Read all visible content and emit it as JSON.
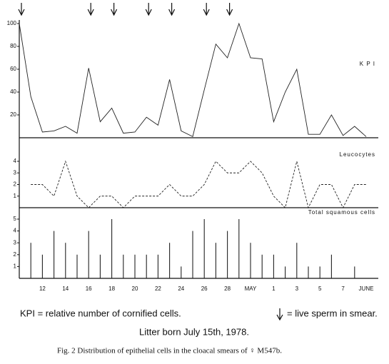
{
  "chart_data": [
    {
      "type": "line",
      "label": "K P I",
      "dashed": false,
      "values": [
        100,
        36,
        5,
        6,
        10,
        4,
        61,
        14,
        26,
        4,
        5,
        18,
        11,
        51,
        6,
        1,
        42,
        82,
        70,
        100,
        70,
        69,
        14,
        40,
        60,
        3,
        3,
        20,
        2,
        10,
        1
      ],
      "ylim": [
        0,
        100
      ],
      "yticks": [
        20,
        40,
        60,
        80,
        100
      ]
    },
    {
      "type": "line",
      "label": "Leucocytes",
      "dashed": true,
      "values": [
        null,
        2,
        2,
        1,
        4,
        1,
        0,
        1,
        1,
        0,
        1,
        1,
        1,
        2,
        1,
        1,
        2,
        4,
        3,
        3,
        4,
        3,
        1,
        0,
        4,
        0,
        2,
        2,
        0,
        2,
        2
      ],
      "ylim": [
        0,
        4
      ],
      "yticks": [
        1,
        2,
        3,
        4
      ]
    },
    {
      "type": "bar",
      "label": "Total squamous cells",
      "categories": [
        null,
        null,
        "12",
        null,
        "14",
        null,
        "16",
        null,
        "18",
        null,
        "20",
        null,
        "22",
        null,
        "24",
        null,
        "26",
        null,
        "28",
        null,
        "MAY",
        null,
        "1",
        null,
        "3",
        null,
        "5",
        null,
        "7",
        null,
        "JUNE"
      ],
      "values": [
        null,
        3,
        2,
        4,
        3,
        2,
        4,
        2,
        5,
        2,
        2,
        2,
        2,
        3,
        1,
        4,
        5,
        3,
        4,
        5,
        3,
        2,
        2,
        1,
        3,
        1,
        1,
        2,
        0,
        1,
        0
      ],
      "ylim": [
        0,
        5
      ],
      "yticks": [
        1,
        2,
        3,
        4,
        5
      ]
    }
  ],
  "sperm_days": [
    0,
    6,
    8,
    11,
    13,
    16,
    18
  ],
  "legend_kpi": "KPI = relative number of cornified cells.",
  "legend_sperm": "= live sperm in smear.",
  "litter_note": "Litter born July 15th, 1978.",
  "caption": "Fig. 2   Distribution of epithelial cells in the cloacal smears of ♀ M547b."
}
